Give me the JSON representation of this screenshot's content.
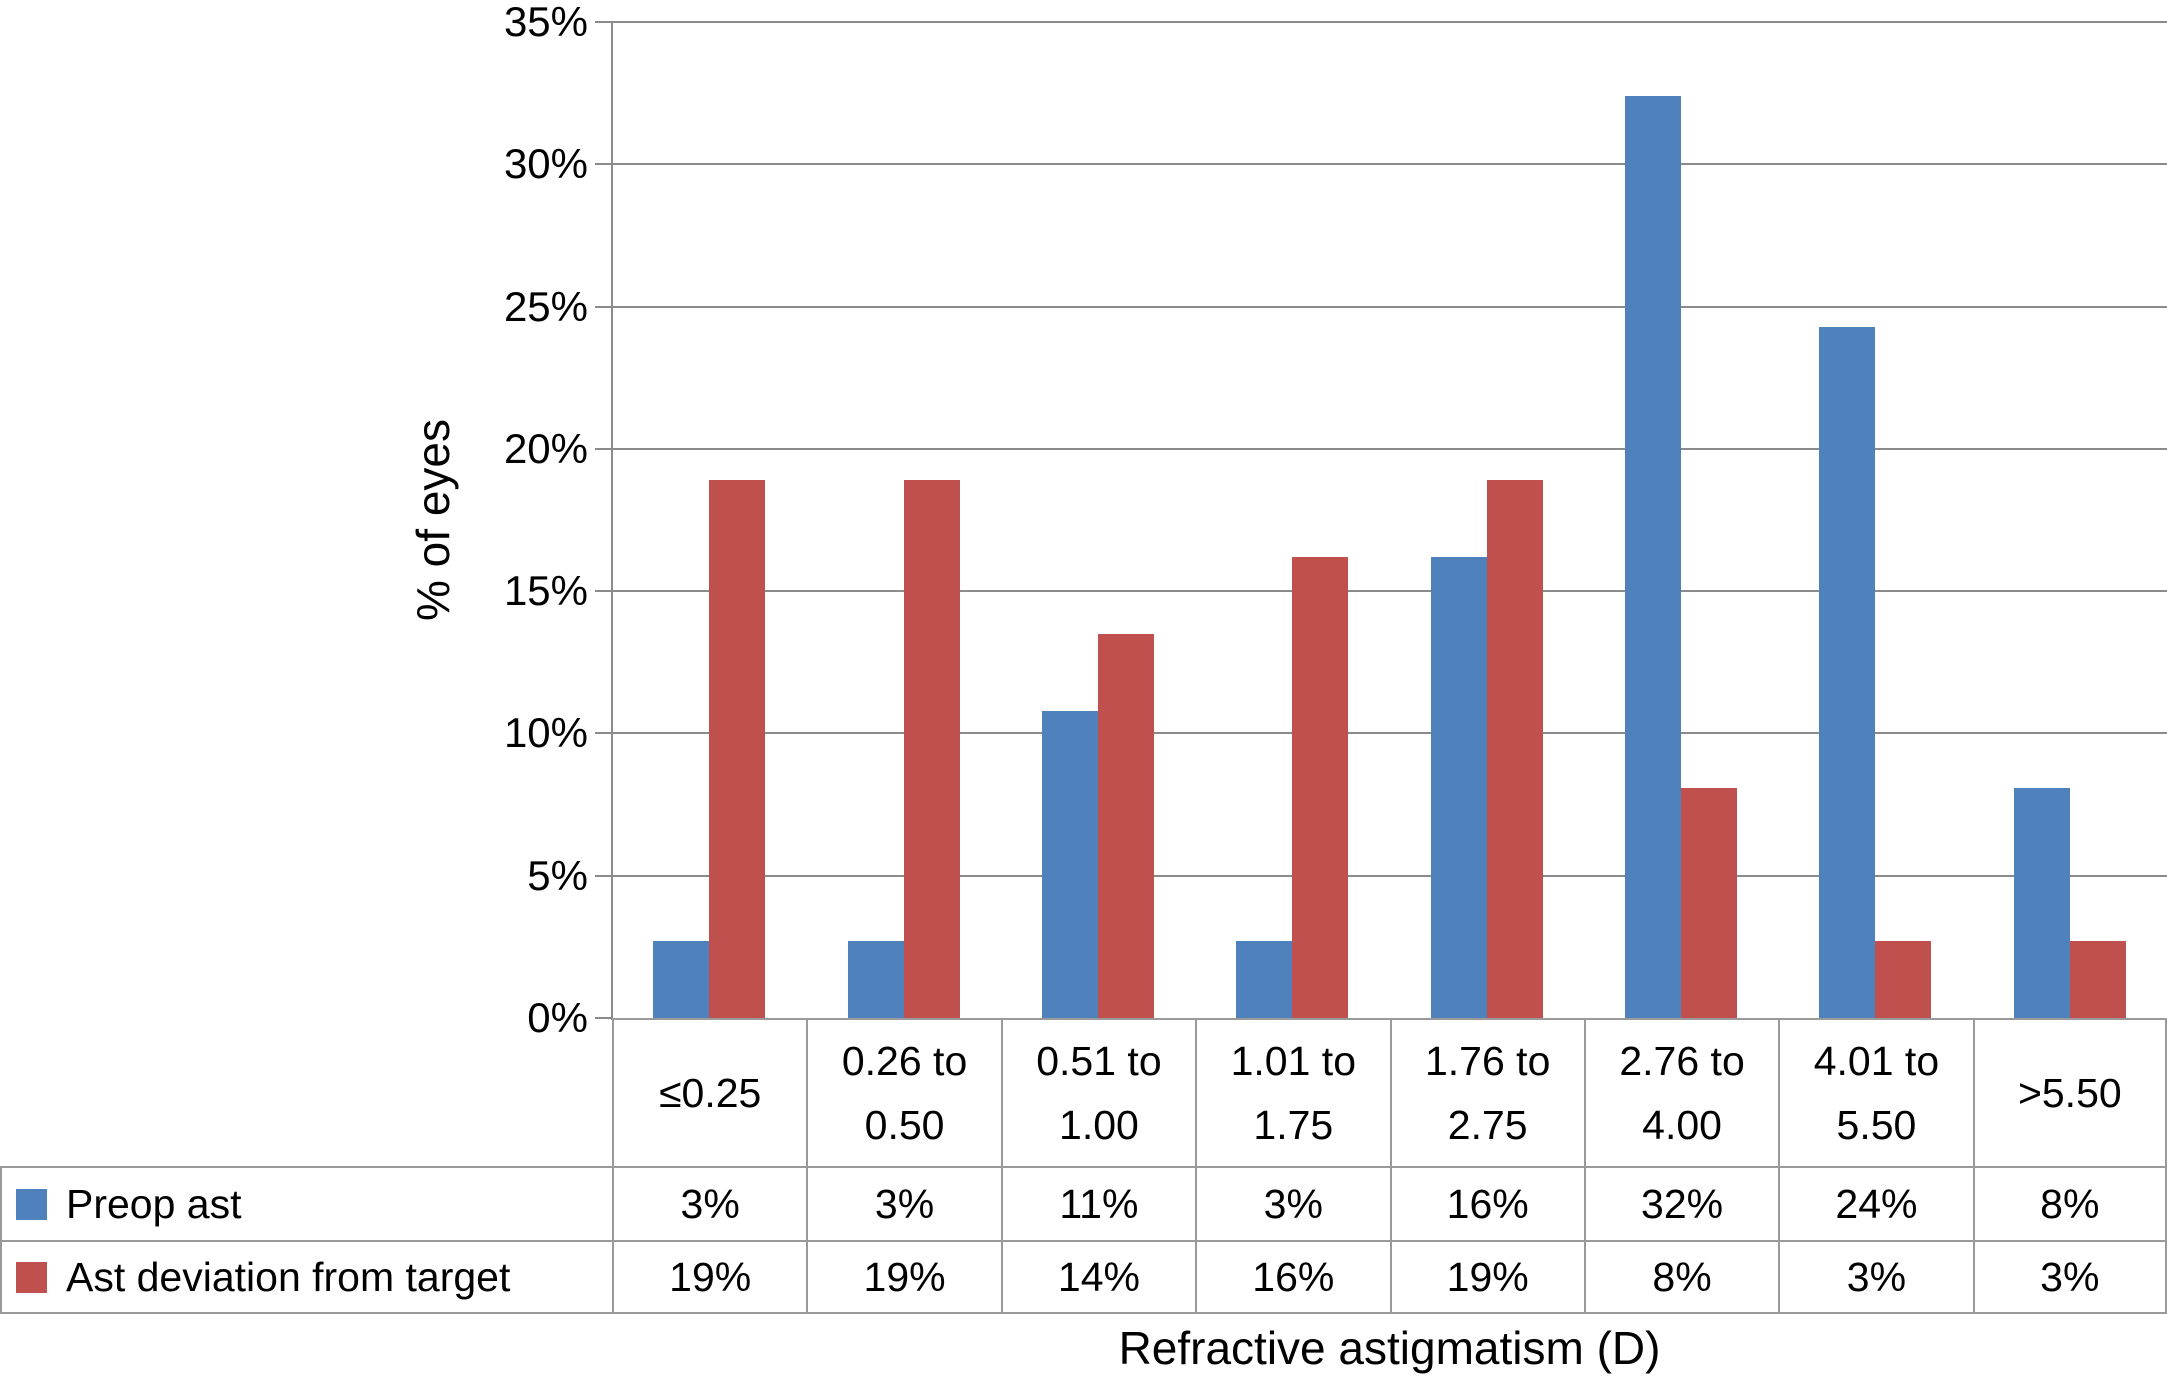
{
  "chart_data": {
    "type": "bar",
    "title": "",
    "xlabel": "Refractive astigmatism (D)",
    "ylabel": "% of eyes",
    "ylim": [
      0,
      35
    ],
    "ytick_step": 5,
    "ytick_labels": [
      "0%",
      "5%",
      "10%",
      "15%",
      "20%",
      "25%",
      "30%",
      "35%"
    ],
    "grid": "horizontal",
    "legend_position": "table-left",
    "categories": [
      "≤0.25",
      "0.26 to 0.50",
      "0.51 to 1.00",
      "1.01 to 1.75",
      "1.76 to 2.75",
      "2.76 to 4.00",
      "4.01 to 5.50",
      ">5.50"
    ],
    "series": [
      {
        "name": "Preop ast",
        "color": "#4F81BD",
        "values_pct": [
          2.7,
          2.7,
          10.8,
          2.7,
          16.2,
          32.4,
          24.3,
          8.1
        ],
        "table_values": [
          "3%",
          "3%",
          "11%",
          "3%",
          "16%",
          "32%",
          "24%",
          "8%"
        ]
      },
      {
        "name": "Ast deviation from target",
        "color": "#C0504D",
        "values_pct": [
          18.9,
          18.9,
          13.5,
          16.2,
          18.9,
          8.1,
          2.7,
          2.7
        ],
        "table_values": [
          "19%",
          "19%",
          "14%",
          "16%",
          "19%",
          "8%",
          "3%",
          "3%"
        ]
      }
    ]
  },
  "colors": {
    "gridline": "#8B8B8B",
    "table_border": "#9A9A9A",
    "background": "#FFFFFF",
    "text": "#000000"
  }
}
